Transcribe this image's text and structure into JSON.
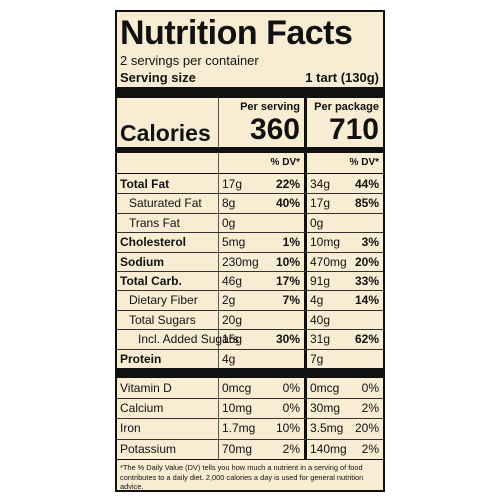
{
  "label": {
    "title": "Nutrition Facts",
    "servings": "2 servings per container",
    "serving_size_label": "Serving size",
    "serving_size": "1 tart (130g)",
    "per_serving": "Per serving",
    "per_package": "Per package",
    "calories_label": "Calories",
    "calories_serving": "360",
    "calories_package": "710",
    "dv_serving": "% DV*",
    "dv_package": "% DV*",
    "nutrients": [
      {
        "name": "Total Fat",
        "bold": true,
        "indent": 0,
        "serving_amount": "17g",
        "serving_dv": "22%",
        "package_amount": "34g",
        "package_dv": "44%"
      },
      {
        "name": "Saturated Fat",
        "bold": false,
        "indent": 1,
        "serving_amount": "8g",
        "serving_dv": "40%",
        "package_amount": "17g",
        "package_dv": "85%"
      },
      {
        "name": "Trans Fat",
        "bold": false,
        "indent": 1,
        "serving_amount": "0g",
        "package_amount": "0g"
      },
      {
        "name": "Cholesterol",
        "bold": true,
        "indent": 0,
        "serving_amount": "5mg",
        "serving_dv": "1%",
        "package_amount": "10mg",
        "package_dv": "3%"
      },
      {
        "name": "Sodium",
        "bold": true,
        "indent": 0,
        "serving_amount": "230mg",
        "serving_dv": "10%",
        "package_amount": "470mg",
        "package_dv": "20%"
      },
      {
        "name": "Total Carb.",
        "bold": true,
        "indent": 0,
        "serving_amount": "46g",
        "serving_dv": "17%",
        "package_amount": "91g",
        "package_dv": "33%"
      },
      {
        "name": "Dietary Fiber",
        "bold": false,
        "indent": 1,
        "serving_amount": "2g",
        "serving_dv": "7%",
        "package_amount": "4g",
        "package_dv": "14%"
      },
      {
        "name": "Total Sugars",
        "bold": false,
        "indent": 1,
        "serving_amount": "20g",
        "package_amount": "40g"
      },
      {
        "name": "Incl. Added Sugars",
        "bold": false,
        "indent": 2,
        "serving_amount": "15g",
        "serving_dv": "30%",
        "package_amount": "31g",
        "package_dv": "62%"
      },
      {
        "name": "Protein",
        "bold": true,
        "indent": 0,
        "serving_amount": "4g",
        "package_amount": "7g"
      }
    ],
    "vitamins": [
      {
        "name": "Vitamin D",
        "serving_amount": "0mcg",
        "serving_dv": "0%",
        "package_amount": "0mcg",
        "package_dv": "0%"
      },
      {
        "name": "Calcium",
        "serving_amount": "10mg",
        "serving_dv": "0%",
        "package_amount": "30mg",
        "package_dv": "2%"
      },
      {
        "name": "Iron",
        "serving_amount": "1.7mg",
        "serving_dv": "10%",
        "package_amount": "3.5mg",
        "package_dv": "20%"
      },
      {
        "name": "Potassium",
        "serving_amount": "70mg",
        "serving_dv": "2%",
        "package_amount": "140mg",
        "package_dv": "2%"
      }
    ],
    "footnote": "*The % Daily Value (DV) tells you how much a nutrient in a serving of food contributes to a daily diet. 2,000 calories a day is used for general nutrition advice."
  }
}
